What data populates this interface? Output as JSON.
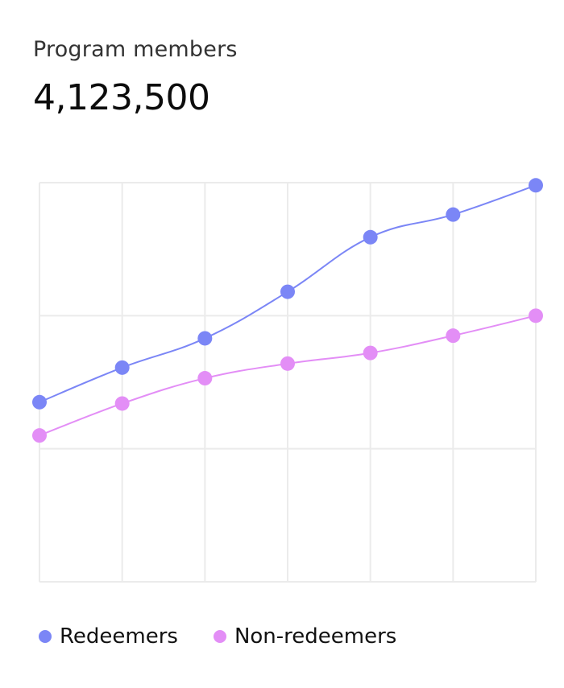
{
  "header": {
    "title": "Program members",
    "value": "4,123,500"
  },
  "colors": {
    "redeemers": "#7b86f6",
    "non_redeemers": "#e38ef6",
    "grid": "#ebebeb"
  },
  "chart_data": {
    "type": "line",
    "title": "",
    "xlabel": "",
    "ylabel": "",
    "x": [
      1,
      2,
      3,
      4,
      5,
      6,
      7
    ],
    "ylim": [
      0,
      3
    ],
    "grid": true,
    "smooth": true,
    "legend": "bottom-left",
    "series": [
      {
        "name": "Redeemers",
        "color": "#7b86f6",
        "values": [
          1.35,
          1.61,
          1.83,
          2.18,
          2.59,
          2.76,
          2.98
        ]
      },
      {
        "name": "Non-redeemers",
        "color": "#e38ef6",
        "values": [
          1.1,
          1.34,
          1.53,
          1.64,
          1.72,
          1.85,
          2.0
        ]
      }
    ]
  }
}
